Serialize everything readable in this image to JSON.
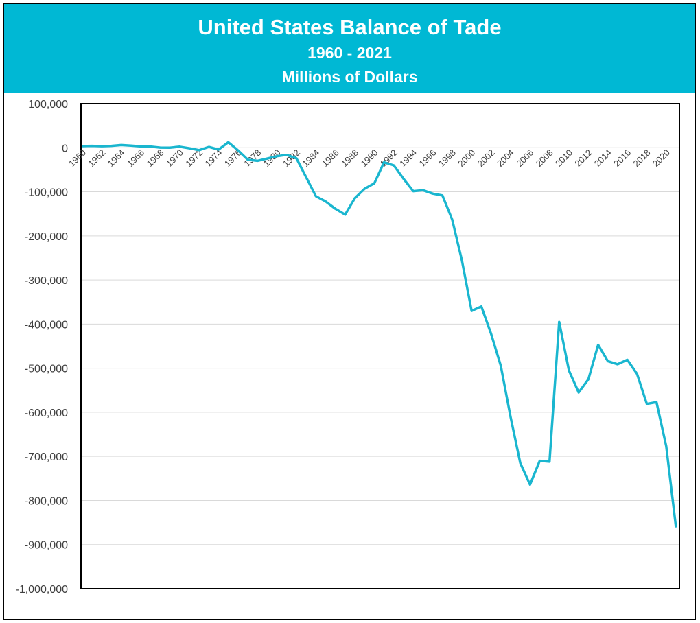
{
  "colors": {
    "banner": "#00B8D4",
    "line": "#1AB6CF",
    "grid": "#D9D9D9",
    "axis_text": "#404040"
  },
  "chart_data": {
    "type": "line",
    "title": "United States Balance of Tade",
    "subtitle": "1960 - 2021",
    "ylabel": "Millions of Dollars",
    "xlabel": "",
    "ylim": [
      -1000000,
      100000
    ],
    "y_ticks": [
      100000,
      0,
      -100000,
      -200000,
      -300000,
      -400000,
      -500000,
      -600000,
      -700000,
      -800000,
      -900000,
      -1000000
    ],
    "y_tick_labels": [
      "100,000",
      "0",
      "-100,000",
      "-200,000",
      "-300,000",
      "-400,000",
      "-500,000",
      "-600,000",
      "-700,000",
      "-800,000",
      "-900,000",
      "-1,000,000"
    ],
    "x_tick_labels": [
      "1960",
      "1962",
      "1964",
      "1966",
      "1968",
      "1970",
      "1972",
      "1974",
      "1976",
      "1978",
      "1980",
      "1982",
      "1984",
      "1986",
      "1988",
      "1990",
      "1992",
      "1994",
      "1996",
      "1998",
      "2000",
      "2002",
      "2004",
      "2006",
      "2008",
      "2010",
      "2012",
      "2014",
      "2016",
      "2018",
      "2020"
    ],
    "grid": true,
    "legend": "none",
    "x": [
      1960,
      1961,
      1962,
      1963,
      1964,
      1965,
      1966,
      1967,
      1968,
      1969,
      1970,
      1971,
      1972,
      1973,
      1974,
      1975,
      1976,
      1977,
      1978,
      1979,
      1980,
      1981,
      1982,
      1983,
      1984,
      1985,
      1986,
      1987,
      1988,
      1989,
      1990,
      1991,
      1992,
      1993,
      1994,
      1995,
      1996,
      1997,
      1998,
      1999,
      2000,
      2001,
      2002,
      2003,
      2004,
      2005,
      2006,
      2007,
      2008,
      2009,
      2010,
      2011,
      2012,
      2013,
      2014,
      2015,
      2016,
      2017,
      2018,
      2019,
      2020,
      2021
    ],
    "values": [
      3508,
      4195,
      3370,
      4210,
      6022,
      4664,
      2939,
      2604,
      250,
      91,
      2254,
      -1302,
      -5443,
      1900,
      -4293,
      12404,
      -6082,
      -27246,
      -29763,
      -24565,
      -19407,
      -16172,
      -24156,
      -67000,
      -110000,
      -121880,
      -138538,
      -151684,
      -114566,
      -93141,
      -80864,
      -33000,
      -40000,
      -70311,
      -98493,
      -96384,
      -104065,
      -108273,
      -163000,
      -255000,
      -370000,
      -360000,
      -422000,
      -495000,
      -610000,
      -715000,
      -764000,
      -710000,
      -712000,
      -395000,
      -505000,
      -555000,
      -525000,
      -447000,
      -484000,
      -491000,
      -481000,
      -513000,
      -581000,
      -577000,
      -677000,
      -861000
    ]
  }
}
